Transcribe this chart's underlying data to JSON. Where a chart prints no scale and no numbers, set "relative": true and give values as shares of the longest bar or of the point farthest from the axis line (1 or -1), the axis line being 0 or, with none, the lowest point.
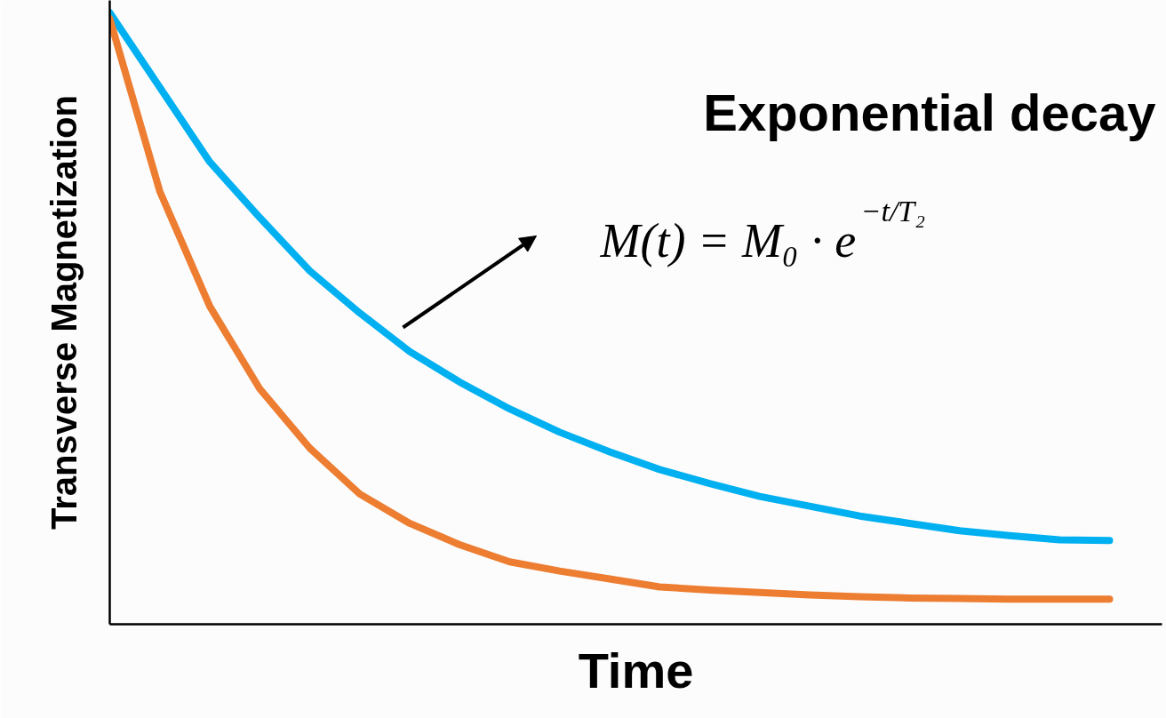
{
  "chart_data": {
    "type": "line",
    "relative": true,
    "xlabel": "Time",
    "ylabel": "Transverse Magnetization",
    "marker": "none",
    "line_style": "solid",
    "annotations": [
      "Exponential decay",
      "M(t) = M₀ · e$^{−t/T₂}$"
    ],
    "categories": [
      null,
      null,
      null,
      null,
      null,
      null,
      null,
      null,
      null,
      null,
      null,
      null,
      null,
      null,
      null,
      null,
      null,
      null,
      null,
      null,
      null
    ],
    "series": [
      {
        "color": "#00b0f0",
        "values": [
          1.0,
          0.878,
          0.756,
          0.665,
          0.578,
          0.509,
          0.446,
          0.396,
          0.352,
          0.314,
          0.282,
          0.253,
          0.23,
          0.209,
          0.193,
          0.177,
          0.165,
          0.153,
          0.145,
          0.138,
          0.137
        ]
      },
      {
        "color": "#ed7d31",
        "values": [
          0.99,
          0.708,
          0.52,
          0.385,
          0.288,
          0.213,
          0.165,
          0.13,
          0.102,
          0.087,
          0.074,
          0.061,
          0.056,
          0.052,
          0.048,
          0.045,
          0.043,
          0.042,
          0.041,
          0.041,
          0.041
        ]
      }
    ]
  }
}
